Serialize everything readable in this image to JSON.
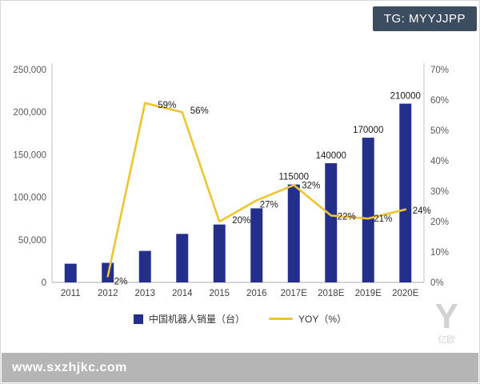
{
  "badge": {
    "text": "TG: MYYJJPP"
  },
  "footer": {
    "url": "www.sxzhjkc.com"
  },
  "watermark": {
    "text": "亿欧"
  },
  "legend": {
    "sales": "中国机器人销量（台）",
    "yoy": "YOY（%）"
  },
  "colors": {
    "bar": "#242f8c",
    "line": "#eec531",
    "badge_bg": "#3d4d60",
    "footer_bg": "#b5b5b5",
    "axis": "#c2c2c2",
    "tick_text": "#595959",
    "label_text": "#1a1a1a"
  },
  "chart_data": {
    "type": "bar+line",
    "title": "",
    "categories": [
      "2011",
      "2012",
      "2013",
      "2014",
      "2015",
      "2016",
      "2017E",
      "2018E",
      "2019E",
      "2020E"
    ],
    "series": [
      {
        "name": "中国机器人销量（台）",
        "type": "bar",
        "axis": "left",
        "values": [
          22000,
          23000,
          37000,
          57000,
          68000,
          87000,
          115000,
          140000,
          170000,
          210000
        ],
        "labels": [
          null,
          null,
          null,
          null,
          null,
          null,
          "115000",
          "140000",
          "170000",
          "210000"
        ]
      },
      {
        "name": "YOY（%）",
        "type": "line",
        "axis": "right",
        "x_indices": [
          1,
          2,
          3,
          4,
          5,
          6,
          7,
          8,
          9
        ],
        "values": [
          2,
          59,
          56,
          20,
          27,
          32,
          22,
          21,
          24
        ],
        "labels": [
          "2%",
          "59%",
          "56%",
          "20%",
          "27%",
          "32%",
          "22%",
          "21%",
          "24%"
        ]
      }
    ],
    "left_axis": {
      "min": 0,
      "max": 250000,
      "ticks": [
        "250,000",
        "200,000",
        "150,000",
        "100,000",
        "50,000",
        "0"
      ]
    },
    "right_axis": {
      "min": 0,
      "max": 70,
      "ticks": [
        "70%",
        "60%",
        "50%",
        "40%",
        "30%",
        "20%",
        "10%",
        "0%"
      ]
    },
    "grid": false,
    "legend_position": "bottom"
  }
}
